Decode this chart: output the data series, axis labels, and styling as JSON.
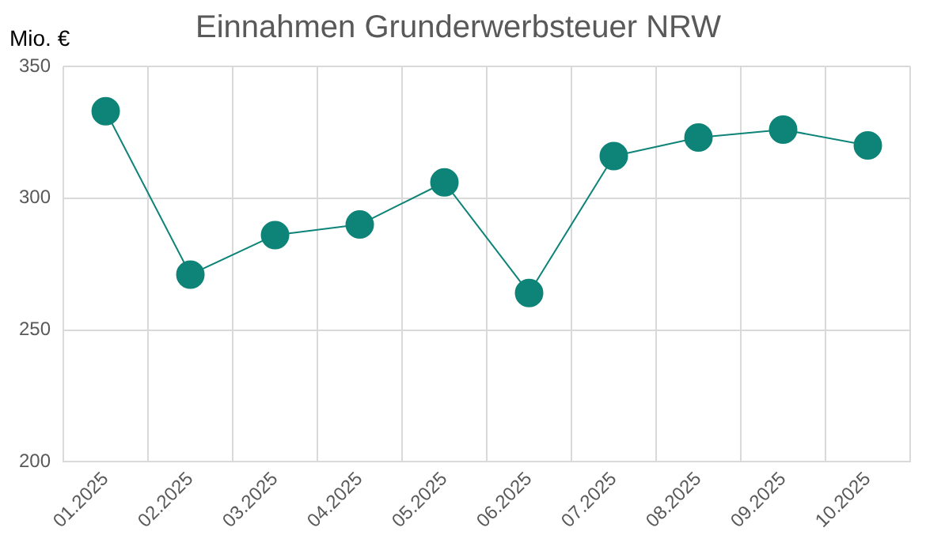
{
  "chart_data": {
    "type": "line",
    "title": "Einnahmen Grunderwerbsteuer NRW",
    "ylabel": "Mio. €",
    "categories": [
      "01.2025",
      "02.2025",
      "03.2025",
      "04.2025",
      "05.2025",
      "06.2025",
      "07.2025",
      "08.2025",
      "09.2025",
      "10.2025"
    ],
    "series": [
      {
        "color": "#0e8478",
        "values": [
          333,
          271,
          286,
          290,
          306,
          264,
          316,
          323,
          326,
          320
        ]
      }
    ],
    "ylim": [
      200,
      350
    ],
    "yticks": [
      200,
      250,
      300,
      350
    ],
    "grid": true,
    "legend": false,
    "marker": "circle",
    "line_style": "solid"
  }
}
